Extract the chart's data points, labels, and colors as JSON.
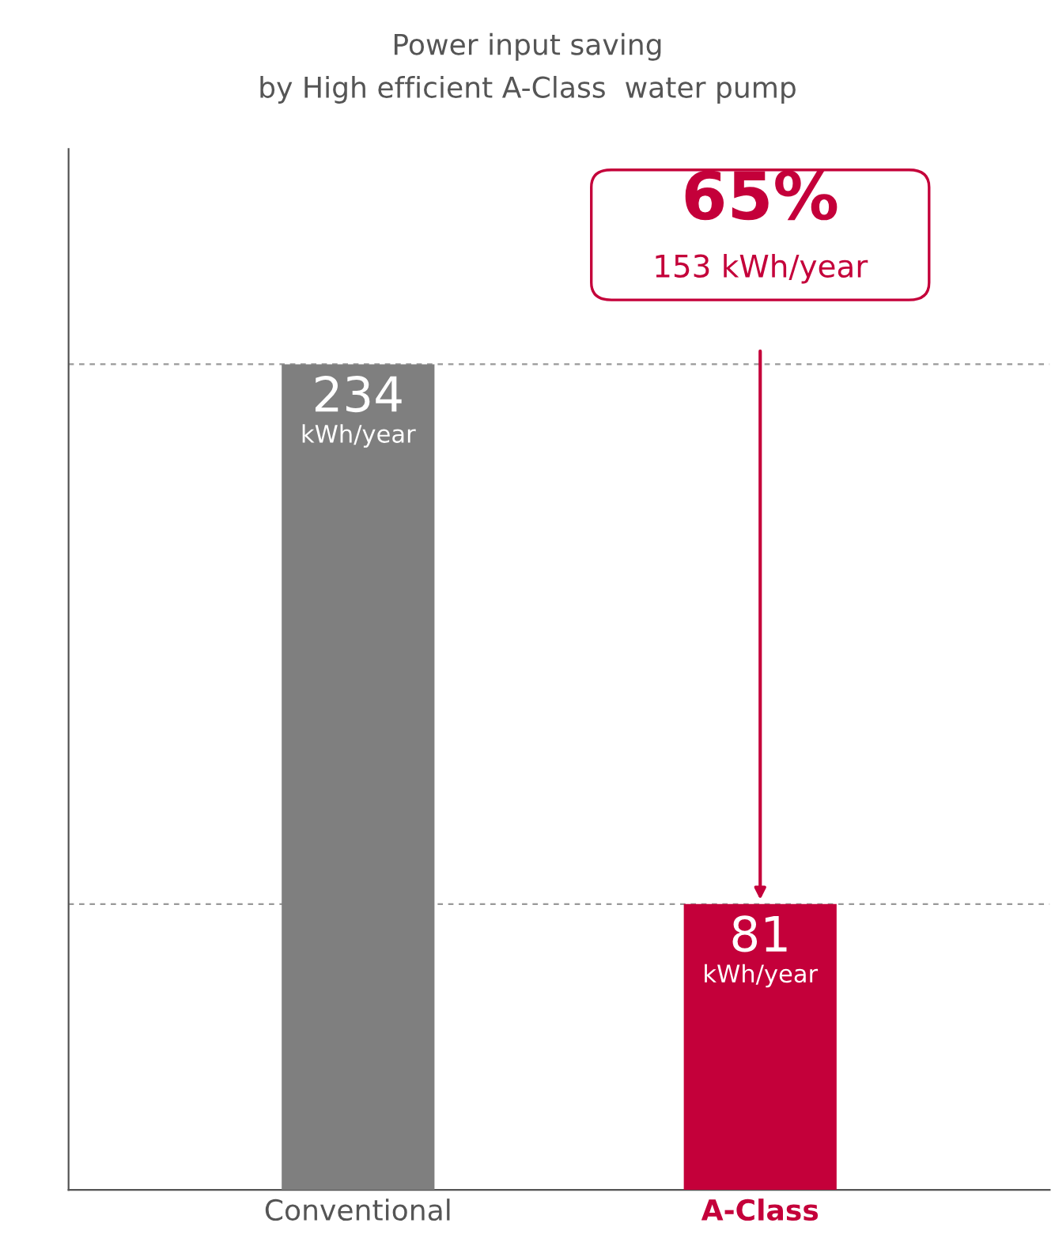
{
  "chart_data": {
    "type": "bar",
    "title": "Power input saving\nby High efficient A-Class  water pump",
    "categories": [
      "Conventional",
      "A-Class"
    ],
    "values": [
      234,
      81
    ],
    "colors": [
      "#7f7f7f",
      "#c4003a"
    ],
    "value_labels": [
      "234\nkWh/year",
      "81\nkWh/year"
    ],
    "ylim": [
      0,
      295
    ],
    "tick_labels": "x",
    "grid": false,
    "ref_lines": [
      {
        "axis": "y",
        "value": 234,
        "color": "#999999",
        "line_style": "dashed"
      },
      {
        "axis": "y",
        "value": 81,
        "color": "#999999",
        "line_style": "dashed"
      }
    ],
    "annotations": [
      {
        "text": "65%\n153 kWh/year",
        "x": "A-Class",
        "y": 81
      }
    ]
  }
}
